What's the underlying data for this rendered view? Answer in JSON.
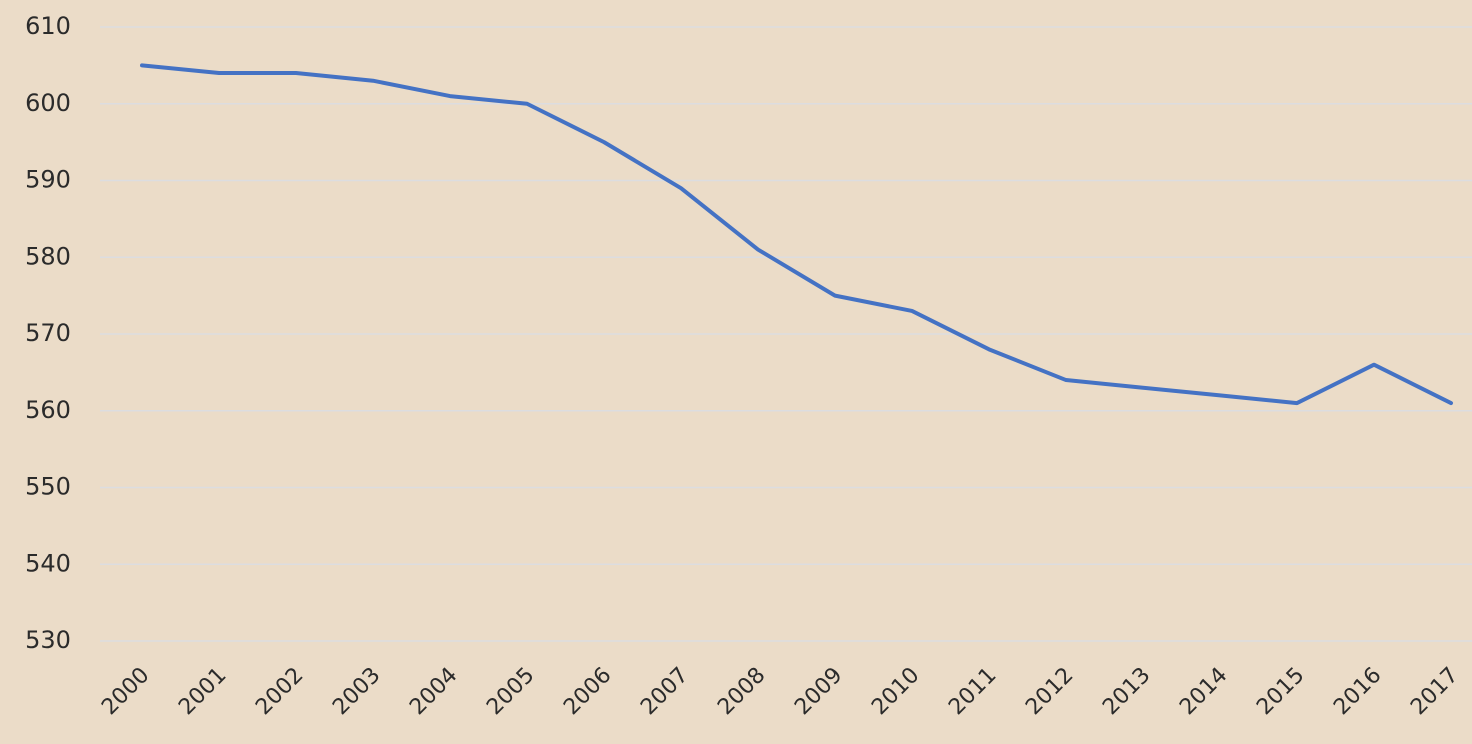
{
  "chart_data": {
    "type": "line",
    "categories": [
      "2000",
      "2001",
      "2002",
      "2003",
      "2004",
      "2005",
      "2006",
      "2007",
      "2008",
      "2009",
      "2010",
      "2011",
      "2012",
      "2013",
      "2014",
      "2015",
      "2016",
      "2017"
    ],
    "values": [
      605,
      604,
      604,
      603,
      601,
      600,
      595,
      589,
      581,
      575,
      573,
      568,
      564,
      563,
      562,
      561,
      566,
      561
    ],
    "color": "#4472c4",
    "ylim": [
      530,
      610
    ],
    "yticks": [
      530,
      540,
      550,
      560,
      570,
      580,
      590,
      600,
      610
    ],
    "grid": true
  }
}
